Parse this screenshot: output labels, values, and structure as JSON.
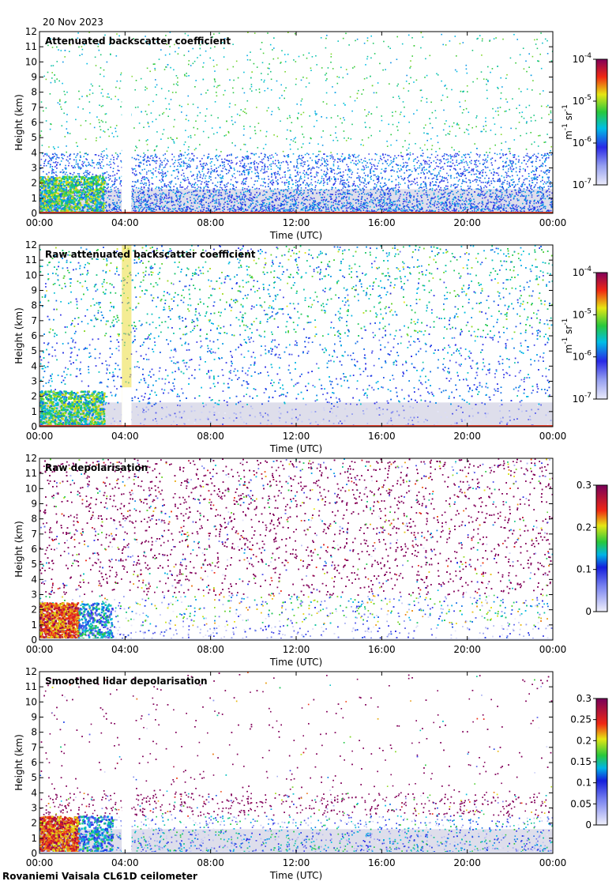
{
  "date_label": "20 Nov 2023",
  "footer_label": "Rovaniemi Vaisala CL61D ceilometer",
  "chart_data": [
    {
      "type": "heatmap",
      "title": "Attenuated backscatter coefficient",
      "xlabel": "Time (UTC)",
      "ylabel": "Height (km)",
      "xticks": [
        "00:00",
        "04:00",
        "08:00",
        "12:00",
        "16:00",
        "20:00",
        "00:00"
      ],
      "yticks": [
        "0",
        "1",
        "2",
        "3",
        "4",
        "5",
        "6",
        "7",
        "8",
        "9",
        "10",
        "11",
        "12"
      ],
      "ylim": [
        0,
        12
      ],
      "xlim_hours": [
        0,
        24
      ],
      "colorbar": {
        "scale": "log",
        "range": [
          1e-07,
          0.0001
        ],
        "ticks": [
          {
            "base": "10",
            "exp": "-7"
          },
          {
            "base": "10",
            "exp": "-6"
          },
          {
            "base": "10",
            "exp": "-5"
          },
          {
            "base": "10",
            "exp": "-4"
          }
        ],
        "unit_parts": [
          "m",
          "-1",
          " sr",
          "-1"
        ]
      },
      "background_top_km": 12,
      "pattern": "cloud-low-early-gap-at-4h"
    },
    {
      "type": "heatmap",
      "title": "Raw attenuated backscatter coefficient",
      "xlabel": "Time (UTC)",
      "ylabel": "Height (km)",
      "xticks": [
        "00:00",
        "04:00",
        "08:00",
        "12:00",
        "16:00",
        "20:00",
        "00:00"
      ],
      "yticks": [
        "0",
        "1",
        "2",
        "3",
        "4",
        "5",
        "6",
        "7",
        "8",
        "9",
        "10",
        "11",
        "12"
      ],
      "ylim": [
        0,
        12
      ],
      "xlim_hours": [
        0,
        24
      ],
      "colorbar": {
        "scale": "log",
        "range": [
          1e-07,
          0.0001
        ],
        "ticks": [
          {
            "base": "10",
            "exp": "-7"
          },
          {
            "base": "10",
            "exp": "-6"
          },
          {
            "base": "10",
            "exp": "-5"
          },
          {
            "base": "10",
            "exp": "-4"
          }
        ],
        "unit_parts": [
          "m",
          "-1",
          " sr",
          "-1"
        ]
      },
      "pattern": "noise-full"
    },
    {
      "type": "heatmap",
      "title": "Raw depolarisation",
      "xlabel": "Time (UTC)",
      "ylabel": "Height (km)",
      "xticks": [
        "00:00",
        "04:00",
        "08:00",
        "12:00",
        "16:00",
        "20:00",
        "00:00"
      ],
      "yticks": [
        "0",
        "1",
        "2",
        "3",
        "4",
        "5",
        "6",
        "7",
        "8",
        "9",
        "10",
        "11",
        "12"
      ],
      "ylim": [
        0,
        12
      ],
      "xlim_hours": [
        0,
        24
      ],
      "colorbar": {
        "scale": "linear",
        "range": [
          0,
          0.3
        ],
        "ticks": [
          "0",
          "0.1",
          "0.2",
          "0.3"
        ]
      },
      "pattern": "depol-noise"
    },
    {
      "type": "heatmap",
      "title": "Smoothed lidar depolarisation",
      "xlabel": "Time (UTC)",
      "ylabel": "Height (km)",
      "xticks": [
        "00:00",
        "04:00",
        "08:00",
        "12:00",
        "16:00",
        "20:00",
        "00:00"
      ],
      "yticks": [
        "0",
        "1",
        "2",
        "3",
        "4",
        "5",
        "6",
        "7",
        "8",
        "9",
        "10",
        "11",
        "12"
      ],
      "ylim": [
        0,
        12
      ],
      "xlim_hours": [
        0,
        24
      ],
      "colorbar": {
        "scale": "linear",
        "range": [
          0,
          0.3
        ],
        "ticks": [
          "0",
          "0.05",
          "0.1",
          "0.15",
          "0.2",
          "0.25",
          "0.3"
        ]
      },
      "pattern": "depol-smoothed"
    }
  ]
}
